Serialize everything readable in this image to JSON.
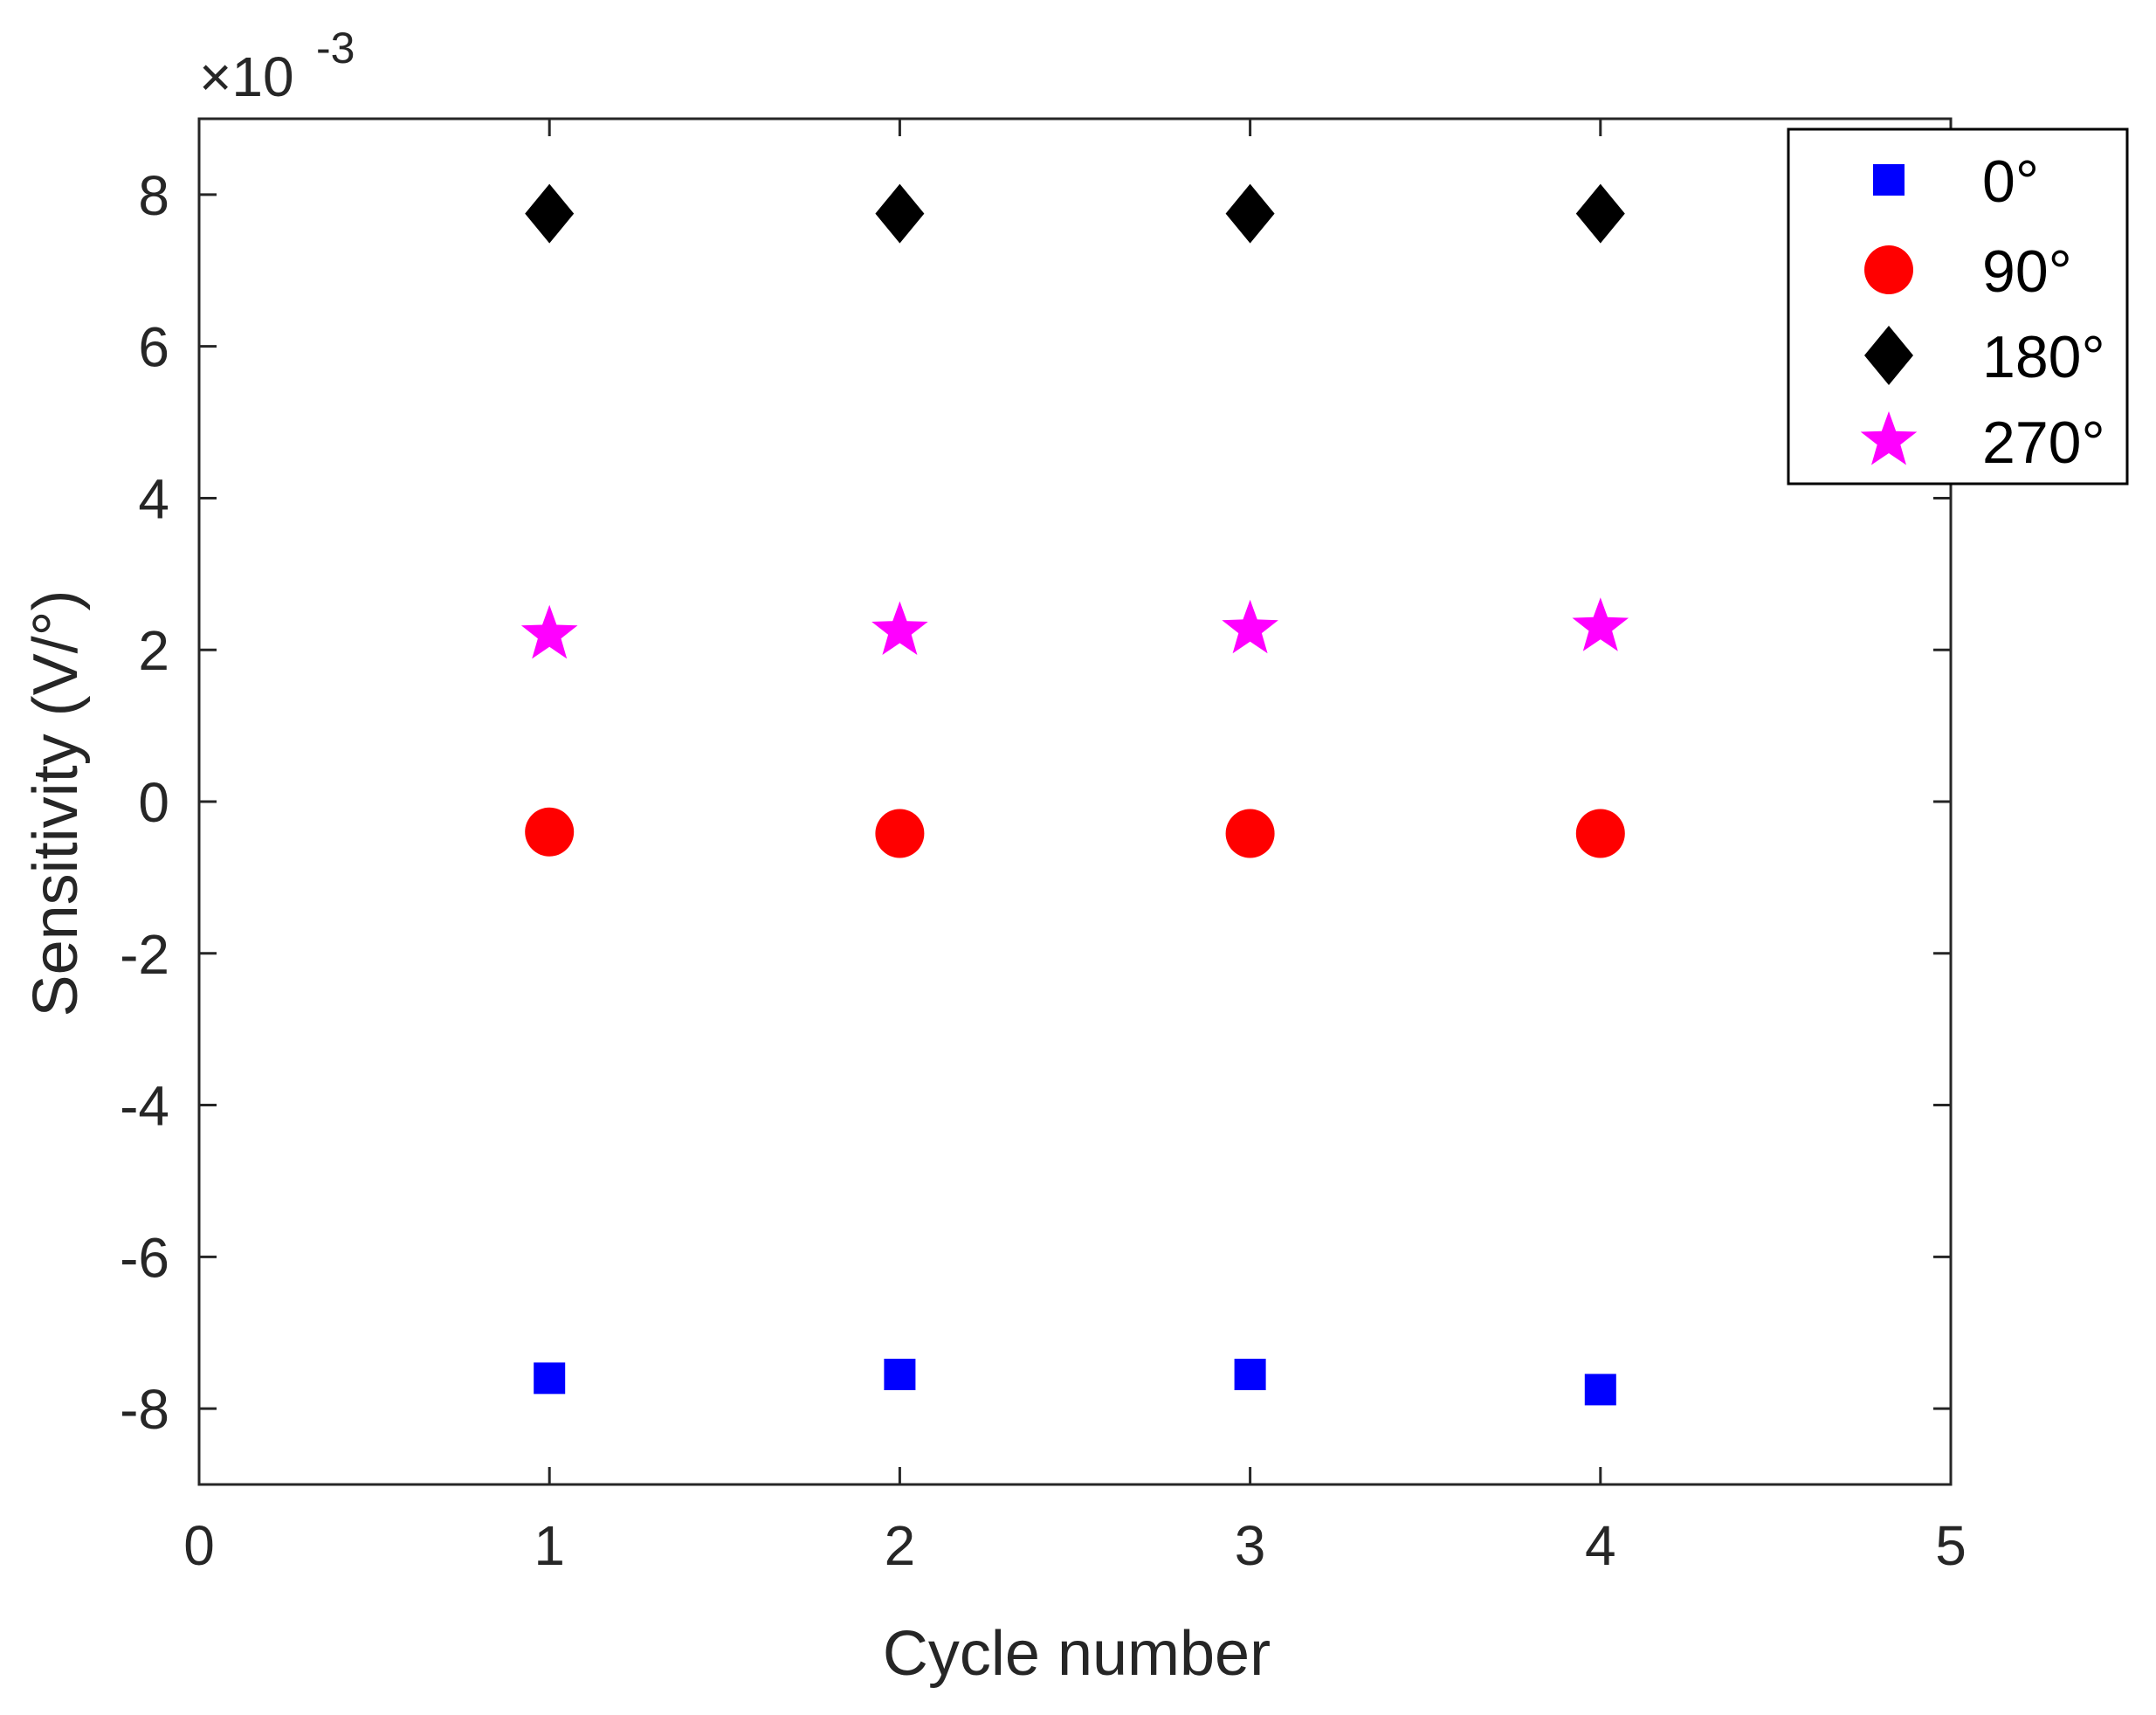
{
  "chart_data": {
    "type": "scatter",
    "title": "",
    "xlabel": "Cycle number",
    "ylabel": "Sensitivity (V/°)",
    "xlim": [
      0,
      5
    ],
    "ylim": [
      -9,
      9
    ],
    "y_scale_note": "×10⁻³",
    "y_multiplier_sign": "×10",
    "y_multiplier_exponent": "-3",
    "x_ticks": [
      0,
      1,
      2,
      3,
      4,
      5
    ],
    "x_tick_labels": [
      "0",
      "1",
      "2",
      "3",
      "4",
      "5"
    ],
    "y_ticks": [
      -8,
      -6,
      -4,
      -2,
      0,
      2,
      4,
      6,
      8
    ],
    "y_tick_labels": [
      "-8",
      "-6",
      "-4",
      "-2",
      "0",
      "2",
      "4",
      "6",
      "8"
    ],
    "grid": false,
    "legend_position": "top-right",
    "x": [
      1,
      2,
      3,
      4
    ],
    "series": [
      {
        "name": "0°",
        "marker": "square",
        "color": "#0000ff",
        "values": [
          -7.6,
          -7.55,
          -7.55,
          -7.75
        ]
      },
      {
        "name": "90°",
        "marker": "circle",
        "color": "#ff0000",
        "values": [
          -0.4,
          -0.42,
          -0.42,
          -0.42
        ]
      },
      {
        "name": "180°",
        "marker": "diamond",
        "color": "#000000",
        "values": [
          7.75,
          7.75,
          7.75,
          7.75
        ]
      },
      {
        "name": "270°",
        "marker": "star",
        "color": "#ff00ff",
        "values": [
          2.2,
          2.25,
          2.27,
          2.3
        ]
      }
    ]
  }
}
